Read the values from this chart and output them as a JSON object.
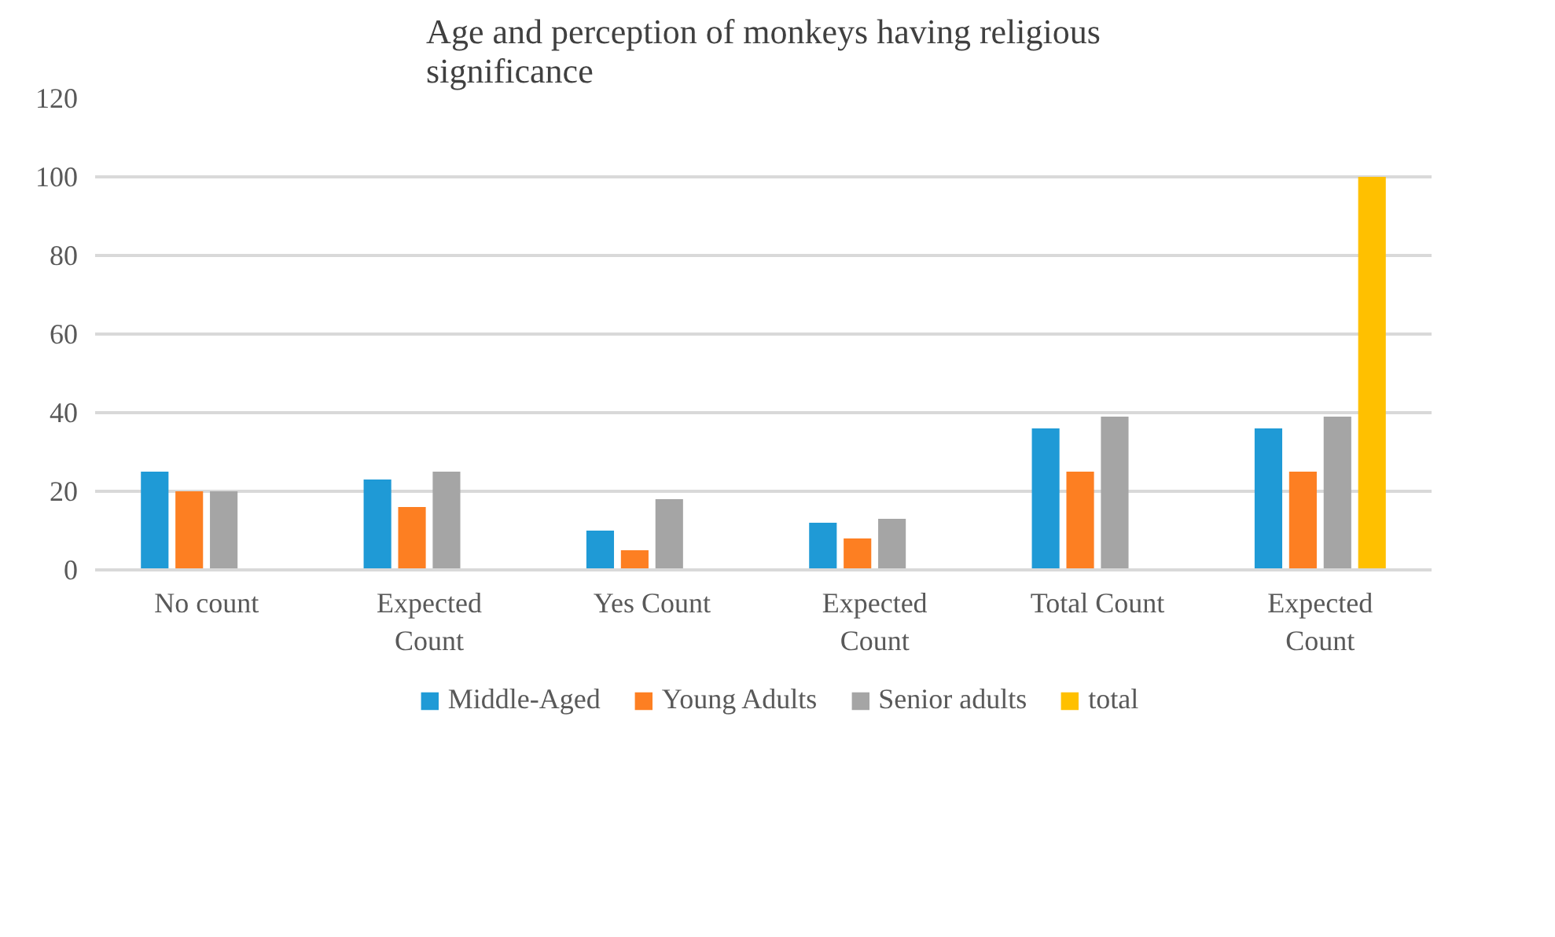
{
  "chart_data": {
    "type": "bar",
    "title": "Age and perception of monkeys having religious significance",
    "categories": [
      "No count",
      "Expected Count",
      "Yes Count",
      "Expected Count",
      "Total Count",
      "Expected Count"
    ],
    "series": [
      {
        "name": "Middle-Aged",
        "color": "#1f9ad6",
        "values": [
          25,
          23,
          10,
          12,
          36,
          36
        ]
      },
      {
        "name": "Young Adults",
        "color": "#fd7f22",
        "values": [
          20,
          16,
          5,
          8,
          25,
          25
        ]
      },
      {
        "name": "Senior adults",
        "color": "#a5a5a5",
        "values": [
          20,
          25,
          18,
          13,
          39,
          39
        ]
      },
      {
        "name": "total",
        "color": "#ffc000",
        "values": [
          null,
          null,
          null,
          null,
          null,
          100
        ]
      }
    ],
    "ylim": [
      0,
      120
    ],
    "yticks": [
      0,
      20,
      40,
      60,
      80,
      100,
      120
    ],
    "grid": "y",
    "legend": "bottom"
  }
}
